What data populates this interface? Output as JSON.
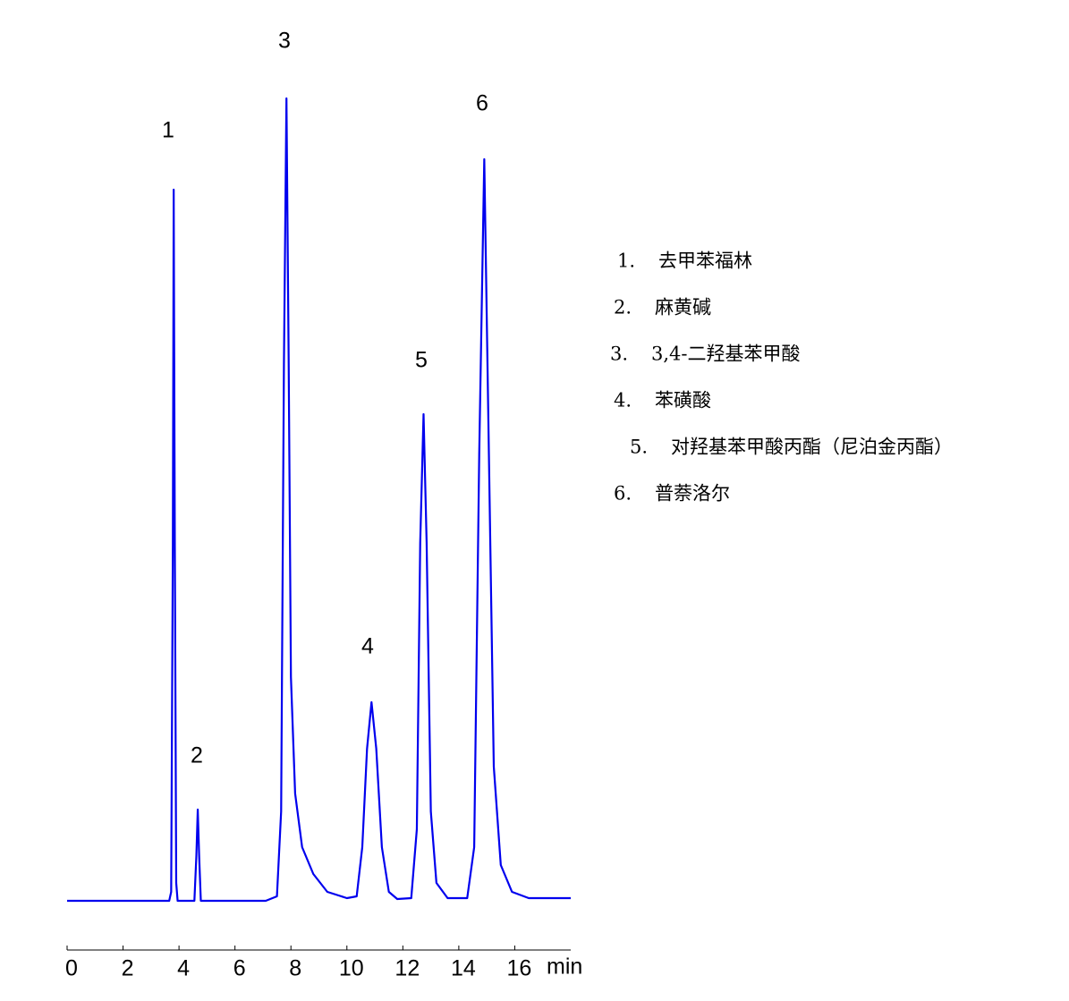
{
  "chart_data": {
    "type": "line",
    "x_label": "min",
    "xlim": [
      0,
      18
    ],
    "xticks": [
      0,
      2,
      4,
      6,
      8,
      10,
      12,
      14,
      16
    ],
    "ylim": [
      0,
      100
    ],
    "series": [
      {
        "color": "#0000ee",
        "x": [
          0,
          3.65,
          3.72,
          3.78,
          3.81,
          3.85,
          3.9,
          3.95,
          4.55,
          4.62,
          4.67,
          4.72,
          4.78,
          7.1,
          7.5,
          7.65,
          7.75,
          7.84,
          7.92,
          8.0,
          8.15,
          8.4,
          8.8,
          9.3,
          10.0,
          10.35,
          10.55,
          10.72,
          10.88,
          11.05,
          11.25,
          11.5,
          11.8,
          12.3,
          12.5,
          12.62,
          12.74,
          12.85,
          13.0,
          13.2,
          13.6,
          14.3,
          14.55,
          14.73,
          14.91,
          15.05,
          15.25,
          15.5,
          15.9,
          16.5,
          18.0
        ],
        "values": [
          0,
          0,
          1,
          40,
          79.5,
          40,
          2,
          0,
          0,
          5,
          10.2,
          5,
          0,
          0,
          0.5,
          10,
          60,
          89.7,
          60,
          25,
          12,
          6,
          3,
          1,
          0.3,
          0.5,
          6,
          17,
          22.2,
          17,
          6,
          1,
          0.2,
          0.3,
          8,
          40,
          54.4,
          40,
          10,
          2,
          0.3,
          0.3,
          6,
          50,
          82.9,
          55,
          15,
          4,
          1,
          0.3,
          0.3
        ]
      }
    ],
    "annotations": [
      "1",
      "2",
      "3",
      "4",
      "5",
      "6"
    ],
    "legend_items": [
      {
        "number": "1.",
        "name": "去甲苯福林"
      },
      {
        "number": "2.",
        "name": "麻黄碱"
      },
      {
        "number": "3.",
        "name": "3,4-二羟基苯甲酸"
      },
      {
        "number": "4.",
        "name": "苯磺酸"
      },
      {
        "number": "5.",
        "name": "对羟基苯甲酸丙酯（尼泊金丙酯）"
      },
      {
        "number": "6.",
        "name": "普萘洛尔"
      }
    ]
  }
}
